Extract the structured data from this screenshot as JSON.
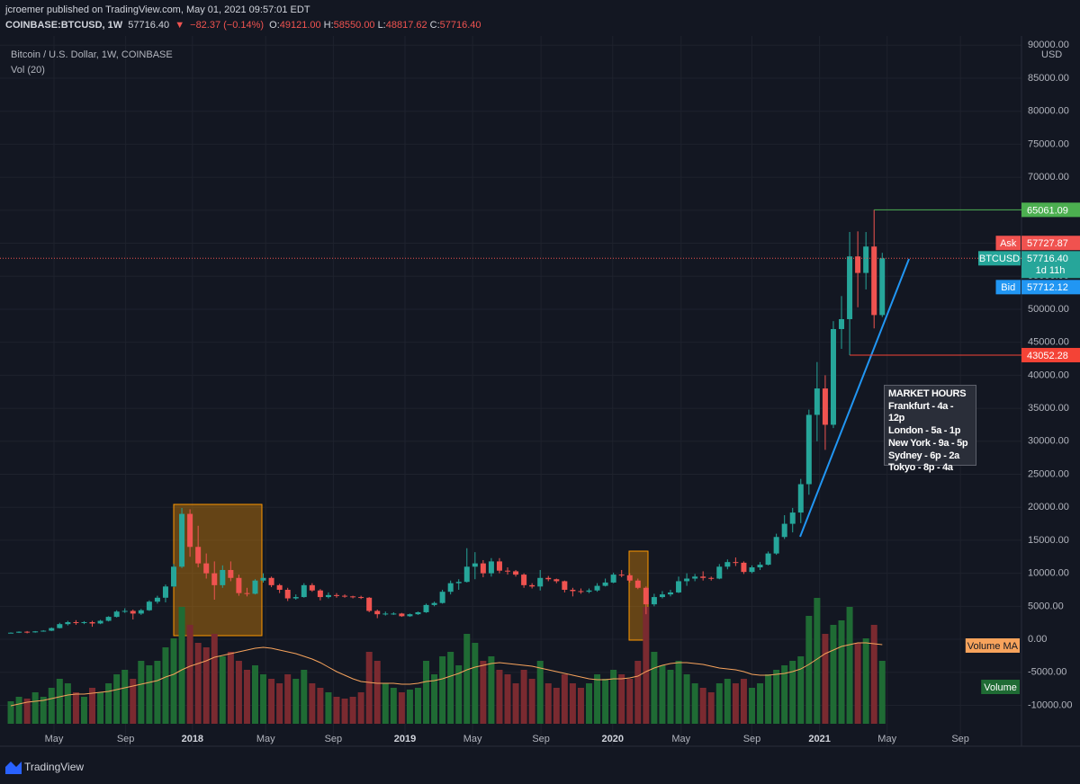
{
  "header": {
    "published": "jcroemer published on TradingView.com, May 01, 2021 09:57:01 EDT",
    "symbol": "COINBASE:BTCUSD, 1W",
    "last": "57716.40",
    "arrow": "▼",
    "change": "−82.37 (−0.14%)",
    "ohlc": [
      {
        "label": "O:",
        "value": "49121.00"
      },
      {
        "label": "H:",
        "value": "58550.00"
      },
      {
        "label": "L:",
        "value": "48817.62"
      },
      {
        "label": "C:",
        "value": "57716.40"
      }
    ]
  },
  "chart_data": {
    "type": "candlestick",
    "title": "Bitcoin / U.S. Dollar, 1W, COINBASE",
    "subtitle": "Vol (20)",
    "unit": "USD",
    "open": [
      950,
      1000,
      1150,
      1050,
      1200,
      1300,
      1700,
      2300,
      2600,
      2500,
      2600,
      2400,
      2800,
      3400,
      4200,
      4300,
      3900,
      4400,
      5700,
      6300,
      8000,
      11000,
      19000,
      14000,
      11500,
      10000,
      8200,
      10500,
      9300,
      7000,
      6900,
      8900,
      9300,
      8200,
      7500,
      6200,
      6400,
      8200,
      7400,
      6400,
      6700,
      6600,
      6500,
      6400,
      6300,
      4300,
      3800,
      3900,
      3900,
      3500,
      3800,
      4100,
      5200,
      5500,
      7200,
      8500,
      8700,
      11000,
      11500,
      10000,
      11800,
      10400,
      10300,
      9800,
      8200,
      8000,
      9300,
      9100,
      8800,
      7500,
      7300,
      7200,
      7400,
      8100,
      8600,
      9800,
      9700,
      8900,
      7800,
      5300,
      6400,
      6800,
      7100,
      8800,
      9200,
      9500,
      9300,
      9200,
      11000,
      11700,
      11600,
      10200,
      10900,
      11300,
      13000,
      15500,
      17500,
      19200,
      23500,
      34000,
      38000,
      32500,
      47000,
      48500,
      58000,
      55500,
      59500,
      49121
    ],
    "high": [
      1050,
      1200,
      1250,
      1250,
      1380,
      1800,
      2500,
      2800,
      2900,
      2750,
      2800,
      2950,
      3500,
      4400,
      4700,
      4500,
      4600,
      5900,
      6600,
      8300,
      11400,
      19900,
      19700,
      17200,
      13000,
      11800,
      11200,
      11800,
      9800,
      7800,
      9100,
      10000,
      9500,
      8400,
      7800,
      6800,
      8500,
      8500,
      7600,
      7100,
      7000,
      6800,
      6600,
      6600,
      6400,
      4500,
      4200,
      4100,
      4000,
      3900,
      4200,
      5400,
      5700,
      7500,
      8900,
      9100,
      13800,
      13200,
      12000,
      12300,
      12300,
      10900,
      10500,
      10000,
      8500,
      10500,
      9600,
      9200,
      8900,
      7800,
      7700,
      7700,
      8500,
      9200,
      10100,
      10500,
      10000,
      9200,
      8000,
      6900,
      7300,
      7500,
      9500,
      10000,
      9900,
      10300,
      9500,
      11400,
      12100,
      12400,
      11800,
      11200,
      11700,
      13300,
      16000,
      18800,
      19900,
      24300,
      34800,
      42000,
      40000,
      48200,
      52000,
      61700,
      61800,
      61700,
      65061.09,
      58550
    ],
    "low": [
      900,
      950,
      900,
      1000,
      1150,
      1250,
      1650,
      2100,
      2200,
      2300,
      1900,
      2300,
      2700,
      3300,
      4000,
      3000,
      3700,
      4300,
      5400,
      5600,
      7900,
      10800,
      12500,
      10900,
      9200,
      6000,
      7800,
      8800,
      6600,
      6500,
      6800,
      8600,
      7900,
      7000,
      5800,
      6000,
      6300,
      7200,
      5900,
      6200,
      6300,
      6300,
      6200,
      6100,
      4100,
      3200,
      3600,
      3700,
      3400,
      3400,
      3700,
      4000,
      5000,
      5400,
      6800,
      7500,
      8600,
      9100,
      9400,
      9500,
      10000,
      9800,
      9500,
      7800,
      7700,
      7400,
      8800,
      8500,
      7100,
      6500,
      6900,
      7000,
      7200,
      8000,
      8500,
      9400,
      8600,
      7600,
      3800,
      5000,
      6200,
      6500,
      7000,
      8100,
      8800,
      8900,
      8900,
      9100,
      10600,
      11100,
      9900,
      10000,
      10500,
      11200,
      12800,
      15200,
      16200,
      17600,
      21900,
      30000,
      28700,
      32000,
      44000,
      43052.28,
      50300,
      53000,
      47100,
      48817.62
    ],
    "close": [
      1000,
      1150,
      1050,
      1200,
      1300,
      1700,
      2300,
      2600,
      2500,
      2600,
      2400,
      2800,
      3400,
      4200,
      4300,
      3900,
      4400,
      5700,
      6300,
      8000,
      11000,
      19000,
      14000,
      11500,
      10000,
      8200,
      10500,
      9300,
      7000,
      6900,
      8900,
      9300,
      8200,
      7500,
      6200,
      6400,
      8200,
      7400,
      6400,
      6700,
      6600,
      6500,
      6400,
      6300,
      4300,
      3800,
      3900,
      3900,
      3500,
      3800,
      4100,
      5200,
      5500,
      7200,
      8500,
      8700,
      11000,
      11500,
      10000,
      11800,
      10400,
      10300,
      9800,
      8200,
      8000,
      9300,
      9100,
      8800,
      7500,
      7300,
      7200,
      7400,
      8100,
      8600,
      9800,
      9700,
      8900,
      7800,
      5300,
      6400,
      6800,
      7100,
      8800,
      9200,
      9500,
      9300,
      9200,
      11000,
      11700,
      11600,
      10200,
      10900,
      11300,
      13000,
      15500,
      17500,
      19200,
      23500,
      34000,
      38000,
      32500,
      47000,
      48500,
      58000,
      55500,
      59500,
      49121,
      57716.4
    ],
    "volume": [
      25,
      30,
      28,
      35,
      30,
      40,
      50,
      45,
      35,
      30,
      40,
      35,
      45,
      55,
      60,
      50,
      70,
      65,
      70,
      85,
      95,
      130,
      110,
      90,
      85,
      100,
      75,
      80,
      70,
      60,
      65,
      55,
      50,
      45,
      55,
      50,
      60,
      45,
      40,
      35,
      30,
      28,
      30,
      35,
      80,
      70,
      45,
      40,
      35,
      38,
      40,
      70,
      55,
      75,
      80,
      65,
      100,
      90,
      70,
      75,
      60,
      55,
      45,
      60,
      50,
      70,
      45,
      40,
      55,
      45,
      40,
      45,
      55,
      50,
      60,
      55,
      50,
      70,
      130,
      80,
      65,
      60,
      70,
      55,
      45,
      40,
      35,
      45,
      50,
      45,
      50,
      40,
      45,
      55,
      60,
      65,
      70,
      75,
      120,
      140,
      100,
      110,
      115,
      130,
      90,
      95,
      110,
      70
    ],
    "volume_ma": [
      20,
      22,
      24,
      25,
      26,
      28,
      30,
      32,
      33,
      33,
      34,
      35,
      36,
      38,
      40,
      42,
      44,
      46,
      48,
      52,
      55,
      60,
      64,
      67,
      70,
      74,
      76,
      78,
      80,
      82,
      84,
      85,
      84,
      82,
      80,
      78,
      75,
      72,
      68,
      63,
      58,
      54,
      50,
      47,
      46,
      45,
      45,
      45,
      44,
      44,
      45,
      47,
      48,
      50,
      53,
      56,
      60,
      63,
      65,
      67,
      68,
      67,
      66,
      65,
      64,
      62,
      60,
      58,
      56,
      54,
      52,
      50,
      49,
      49,
      50,
      50,
      51,
      53,
      58,
      62,
      65,
      67,
      68,
      68,
      67,
      66,
      64,
      62,
      61,
      60,
      58,
      55,
      54,
      54,
      55,
      56,
      58,
      61,
      66,
      72,
      78,
      82,
      86,
      88,
      90,
      90,
      89,
      88
    ],
    "volume_lim": [
      0,
      150
    ],
    "volume_series": [
      {
        "name": "Volume MA",
        "color": "#f7a35c"
      },
      {
        "name": "Volume",
        "color": "#1f6b34"
      }
    ],
    "up_color": "#26a69a",
    "down_color": "#ef5350",
    "volume_up_color": "#1f6b34",
    "volume_down_color": "#7a2a30",
    "xlim": [
      -1.33,
      124.1
    ],
    "xticks": [
      {
        "value": 5.3,
        "label": "May"
      },
      {
        "value": 14.1,
        "label": "Sep"
      },
      {
        "value": 22.3,
        "label": "2018"
      },
      {
        "value": 31.3,
        "label": "May"
      },
      {
        "value": 39.6,
        "label": "Sep"
      },
      {
        "value": 48.4,
        "label": "2019"
      },
      {
        "value": 56.7,
        "label": "May"
      },
      {
        "value": 65.1,
        "label": "Sep"
      },
      {
        "value": 73.9,
        "label": "2020"
      },
      {
        "value": 82.3,
        "label": "May"
      },
      {
        "value": 91.0,
        "label": "Sep"
      },
      {
        "value": 99.3,
        "label": "2021"
      },
      {
        "value": 107.6,
        "label": "May"
      },
      {
        "value": 116.6,
        "label": "Sep"
      }
    ],
    "ylim": [
      -16200,
      91400
    ],
    "yticks": [
      {
        "value": 90000,
        "label": "90000.00"
      },
      {
        "value": 85000,
        "label": "85000.00"
      },
      {
        "value": 80000,
        "label": "80000.00"
      },
      {
        "value": 75000,
        "label": "75000.00"
      },
      {
        "value": 70000,
        "label": "70000.00"
      },
      {
        "value": 65000,
        "label": "65000.00"
      },
      {
        "value": 60000,
        "label": "60000.00"
      },
      {
        "value": 55000,
        "label": "55000.00"
      },
      {
        "value": 50000,
        "label": "50000.00"
      },
      {
        "value": 45000,
        "label": "45000.00"
      },
      {
        "value": 40000,
        "label": "40000.00"
      },
      {
        "value": 35000,
        "label": "35000.00"
      },
      {
        "value": 30000,
        "label": "30000.00"
      },
      {
        "value": 25000,
        "label": "25000.00"
      },
      {
        "value": 20000,
        "label": "20000.00"
      },
      {
        "value": 15000,
        "label": "15000.00"
      },
      {
        "value": 10000,
        "label": "10000.00"
      },
      {
        "value": 5000,
        "label": "5000.00"
      },
      {
        "value": 0,
        "label": "0.00"
      },
      {
        "value": -5000,
        "label": "-5000.00"
      },
      {
        "value": -10000,
        "label": "-10000.00"
      }
    ],
    "grid": true,
    "high_line": {
      "value": 65061.09,
      "color": "#4caf50"
    },
    "low_line": {
      "value": 43052.28,
      "color": "#f44336"
    },
    "quotes": [
      {
        "name": "Ask",
        "value": 57727.87,
        "color": "#f0524f"
      },
      {
        "name": "BTCUSD",
        "value": {
          "value": 57716.4,
          "label": "57716.40"
        },
        "countdown": "1d 11h",
        "color": "#26a69a"
      },
      {
        "name": "Bid",
        "value": 57712.12,
        "color": "#2196f3"
      }
    ],
    "market_hours": {
      "title": "MARKET HOURS",
      "lines": [
        "Frankfurt - 4a - 12p",
        "London - 5a - 1p",
        "New York - 9a - 5p",
        "Sydney - 6p - 2a",
        "Tokyo - 8p - 4a"
      ]
    }
  },
  "footer": {
    "brand": "TradingView"
  }
}
